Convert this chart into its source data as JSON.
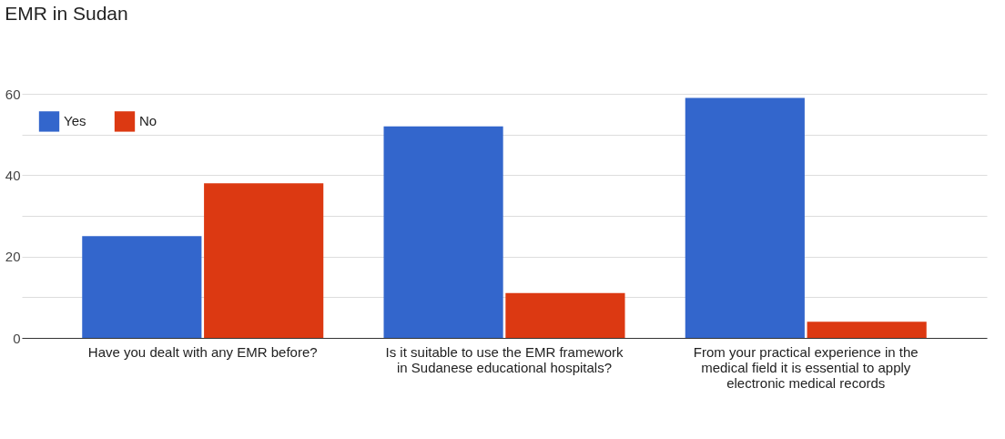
{
  "chart_data": {
    "type": "bar",
    "title": "EMR in Sudan",
    "categories": [
      "Have you dealt with any EMR before?",
      "Is it suitable to use the EMR framework in Sudanese educational hospitals?",
      "From your practical experience in the medical field it is essential to apply electronic medical records"
    ],
    "series": [
      {
        "name": "Yes",
        "color": "#3366cc",
        "values": [
          25,
          52,
          59
        ]
      },
      {
        "name": "No",
        "color": "#dc3912",
        "values": [
          38,
          11,
          4
        ]
      }
    ],
    "ylim": [
      0,
      60
    ],
    "yticks": [
      0,
      {
        "value": 10,
        "label": null
      },
      20,
      {
        "value": 30,
        "label": null
      },
      40,
      {
        "value": 50,
        "label": null
      },
      60
    ],
    "grid": "y",
    "legend": "top left"
  }
}
